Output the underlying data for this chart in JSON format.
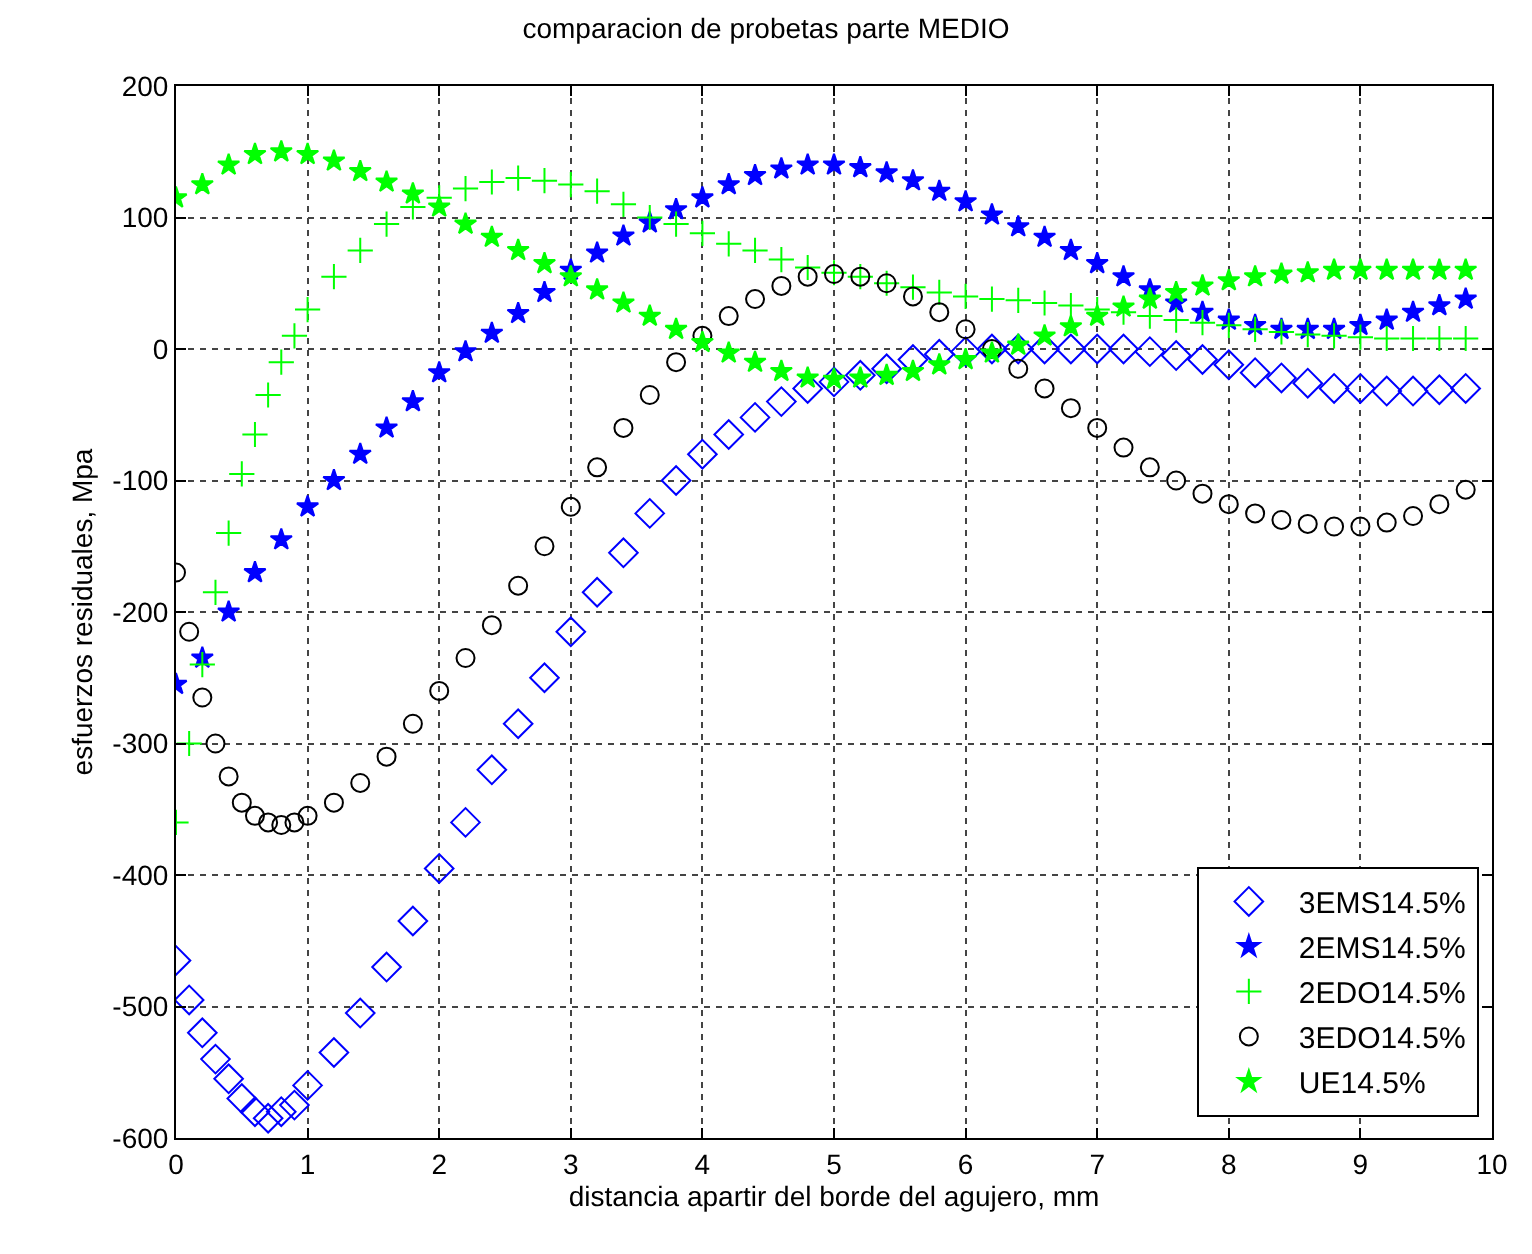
{
  "chart_data": {
    "type": "scatter",
    "title": "comparacion de probetas parte MEDIO",
    "xlabel": "distancia apartir del borde del agujero, mm",
    "ylabel": "esfuerzos residuales, Mpa",
    "xlim": [
      0,
      10
    ],
    "xticks": [
      0,
      1,
      2,
      3,
      4,
      5,
      6,
      7,
      8,
      9,
      10
    ],
    "ylim": [
      -600,
      200
    ],
    "yticks": [
      -600,
      -500,
      -400,
      -300,
      -200,
      -100,
      0,
      100,
      200
    ],
    "grid": true,
    "legend": "bottom right",
    "series": [
      {
        "name": "3EMS14.5%",
        "color": "#0000ff",
        "marker": "diamond",
        "x": [
          0,
          0.1,
          0.2,
          0.3,
          0.4,
          0.5,
          0.6,
          0.7,
          0.8,
          0.9,
          1.0,
          1.2,
          1.4,
          1.6,
          1.8,
          2.0,
          2.2,
          2.4,
          2.6,
          2.8,
          3.0,
          3.2,
          3.4,
          3.6,
          3.8,
          4.0,
          4.2,
          4.4,
          4.6,
          4.8,
          5.0,
          5.2,
          5.4,
          5.6,
          5.8,
          6.0,
          6.2,
          6.4,
          6.6,
          6.8,
          7.0,
          7.2,
          7.4,
          7.6,
          7.8,
          8.0,
          8.2,
          8.4,
          8.6,
          8.8,
          9.0,
          9.2,
          9.4,
          9.6,
          9.8
        ],
        "values": [
          -465,
          -495,
          -520,
          -540,
          -555,
          -570,
          -580,
          -585,
          -580,
          -575,
          -560,
          -535,
          -505,
          -470,
          -435,
          -395,
          -360,
          -320,
          -285,
          -250,
          -215,
          -185,
          -155,
          -125,
          -100,
          -80,
          -65,
          -52,
          -40,
          -30,
          -25,
          -20,
          -15,
          -8,
          -4,
          -2,
          0,
          0,
          0,
          0,
          0,
          0,
          -2,
          -5,
          -8,
          -12,
          -18,
          -22,
          -26,
          -30,
          -30,
          -32,
          -32,
          -31,
          -30
        ]
      },
      {
        "name": "2EMS14.5%",
        "color": "#0000ff",
        "marker": "star",
        "x": [
          0,
          0.2,
          0.4,
          0.6,
          0.8,
          1.0,
          1.2,
          1.4,
          1.6,
          1.8,
          2.0,
          2.2,
          2.4,
          2.6,
          2.8,
          3.0,
          3.2,
          3.4,
          3.6,
          3.8,
          4.0,
          4.2,
          4.4,
          4.6,
          4.8,
          5.0,
          5.2,
          5.4,
          5.6,
          5.8,
          6.0,
          6.2,
          6.4,
          6.6,
          6.8,
          7.0,
          7.2,
          7.4,
          7.6,
          7.8,
          8.0,
          8.2,
          8.4,
          8.6,
          8.8,
          9.0,
          9.2,
          9.4,
          9.6,
          9.8
        ],
        "values": [
          -255,
          -235,
          -200,
          -170,
          -145,
          -120,
          -100,
          -80,
          -60,
          -40,
          -18,
          -2,
          12,
          27,
          43,
          60,
          73,
          86,
          96,
          106,
          115,
          125,
          132,
          137,
          140,
          140,
          138,
          134,
          128,
          120,
          112,
          102,
          93,
          85,
          75,
          65,
          55,
          45,
          35,
          28,
          22,
          18,
          15,
          15,
          15,
          18,
          22,
          28,
          33,
          38
        ]
      },
      {
        "name": "2EDO14.5%",
        "color": "#00ff00",
        "marker": "cross",
        "x": [
          0,
          0.1,
          0.2,
          0.3,
          0.4,
          0.5,
          0.6,
          0.7,
          0.8,
          0.9,
          1.0,
          1.2,
          1.4,
          1.6,
          1.8,
          2.0,
          2.2,
          2.4,
          2.6,
          2.8,
          3.0,
          3.2,
          3.4,
          3.6,
          3.8,
          4.0,
          4.2,
          4.4,
          4.6,
          4.8,
          5.0,
          5.2,
          5.4,
          5.6,
          5.8,
          6.0,
          6.2,
          6.4,
          6.6,
          6.8,
          7.0,
          7.2,
          7.4,
          7.6,
          7.8,
          8.0,
          8.2,
          8.4,
          8.6,
          8.8,
          9.0,
          9.2,
          9.4,
          9.6,
          9.8
        ],
        "values": [
          -360,
          -300,
          -240,
          -185,
          -140,
          -95,
          -65,
          -35,
          -10,
          10,
          30,
          55,
          75,
          95,
          108,
          115,
          122,
          127,
          130,
          128,
          125,
          120,
          110,
          100,
          95,
          88,
          80,
          75,
          68,
          62,
          58,
          55,
          50,
          47,
          43,
          40,
          38,
          37,
          35,
          33,
          30,
          28,
          25,
          22,
          20,
          18,
          15,
          13,
          11,
          10,
          9,
          8,
          8,
          8,
          8
        ]
      },
      {
        "name": "3EDO14.5%",
        "color": "#000000",
        "marker": "circle",
        "x": [
          0,
          0.1,
          0.2,
          0.3,
          0.4,
          0.5,
          0.6,
          0.7,
          0.8,
          0.9,
          1.0,
          1.2,
          1.4,
          1.6,
          1.8,
          2.0,
          2.2,
          2.4,
          2.6,
          2.8,
          3.0,
          3.2,
          3.4,
          3.6,
          3.8,
          4.0,
          4.2,
          4.4,
          4.6,
          4.8,
          5.0,
          5.2,
          5.4,
          5.6,
          5.8,
          6.0,
          6.2,
          6.4,
          6.6,
          6.8,
          7.0,
          7.2,
          7.4,
          7.6,
          7.8,
          8.0,
          8.2,
          8.4,
          8.6,
          8.8,
          9.0,
          9.2,
          9.4,
          9.6,
          9.8
        ],
        "values": [
          -170,
          -215,
          -265,
          -300,
          -325,
          -345,
          -355,
          -360,
          -362,
          -360,
          -355,
          -345,
          -330,
          -310,
          -285,
          -260,
          -235,
          -210,
          -180,
          -150,
          -120,
          -90,
          -60,
          -35,
          -10,
          10,
          25,
          38,
          48,
          55,
          57,
          55,
          50,
          40,
          28,
          15,
          0,
          -15,
          -30,
          -45,
          -60,
          -75,
          -90,
          -100,
          -110,
          -118,
          -125,
          -130,
          -133,
          -135,
          -135,
          -132,
          -127,
          -118,
          -107
        ]
      },
      {
        "name": "UE14.5%",
        "color": "#00ff00",
        "marker": "star",
        "x": [
          0,
          0.2,
          0.4,
          0.6,
          0.8,
          1.0,
          1.2,
          1.4,
          1.6,
          1.8,
          2.0,
          2.2,
          2.4,
          2.6,
          2.8,
          3.0,
          3.2,
          3.4,
          3.6,
          3.8,
          4.0,
          4.2,
          4.4,
          4.6,
          4.8,
          5.0,
          5.2,
          5.4,
          5.6,
          5.8,
          6.0,
          6.2,
          6.4,
          6.6,
          6.8,
          7.0,
          7.2,
          7.4,
          7.6,
          7.8,
          8.0,
          8.2,
          8.4,
          8.6,
          8.8,
          9.0,
          9.2,
          9.4,
          9.6,
          9.8
        ],
        "values": [
          115,
          125,
          140,
          148,
          150,
          148,
          143,
          135,
          127,
          118,
          108,
          95,
          85,
          75,
          65,
          55,
          45,
          35,
          25,
          15,
          5,
          -3,
          -10,
          -17,
          -22,
          -23,
          -22,
          -20,
          -17,
          -12,
          -8,
          -3,
          3,
          10,
          17,
          25,
          32,
          38,
          43,
          48,
          52,
          55,
          57,
          58,
          60,
          60,
          60,
          60,
          60,
          60
        ]
      }
    ]
  }
}
